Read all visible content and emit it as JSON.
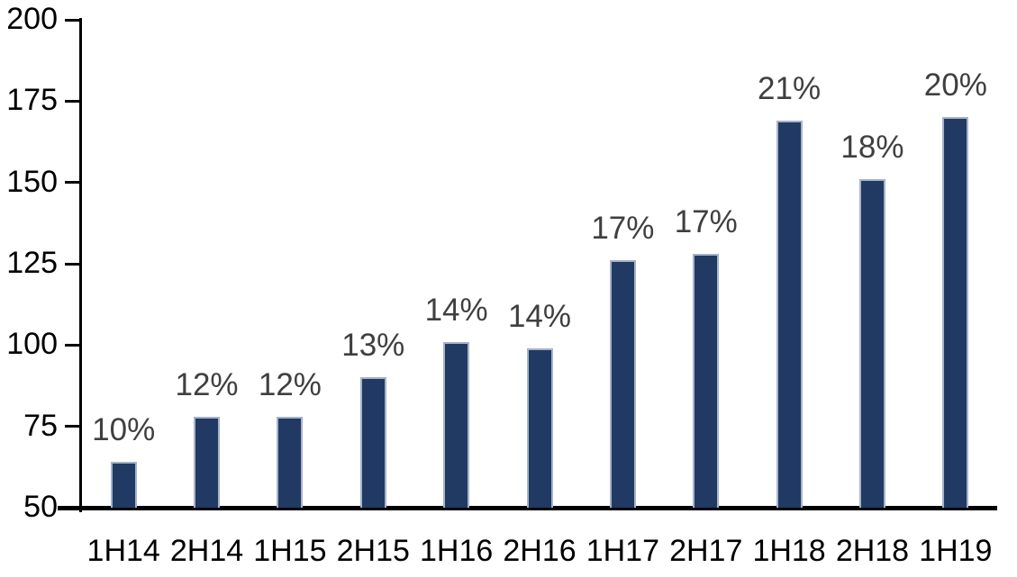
{
  "chart_data": {
    "type": "bar",
    "title": "",
    "xlabel": "",
    "ylabel": "",
    "categories": [
      "1H14",
      "2H14",
      "1H15",
      "2H15",
      "1H16",
      "2H16",
      "1H17",
      "2H17",
      "1H18",
      "2H18",
      "1H19"
    ],
    "values": [
      64,
      78,
      78,
      90,
      101,
      99,
      126,
      128,
      169,
      151,
      170
    ],
    "bar_labels": [
      "10%",
      "12%",
      "12%",
      "13%",
      "14%",
      "14%",
      "17%",
      "17%",
      "21%",
      "18%",
      "20%"
    ],
    "ylim": [
      50,
      200
    ],
    "yticks": [
      50,
      75,
      100,
      125,
      150,
      175,
      200
    ],
    "grid": false,
    "legend": "none",
    "colors": {
      "bar_fill": "#203a64",
      "bar_border": "#a7b3c9",
      "axis": "#000000",
      "data_label": "#3f3f3f"
    }
  }
}
